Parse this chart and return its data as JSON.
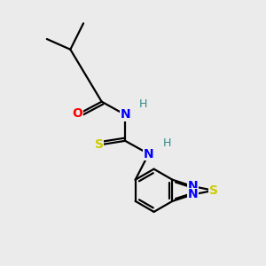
{
  "background_color": "#ebebeb",
  "bond_color": "#000000",
  "atom_colors": {
    "O": "#ff0000",
    "N": "#0000ff",
    "S_thio": "#cccc00",
    "S_ring": "#cccc00",
    "H": "#2e8b8b",
    "C": "#000000"
  },
  "figsize": [
    3.0,
    3.0
  ],
  "dpi": 100
}
